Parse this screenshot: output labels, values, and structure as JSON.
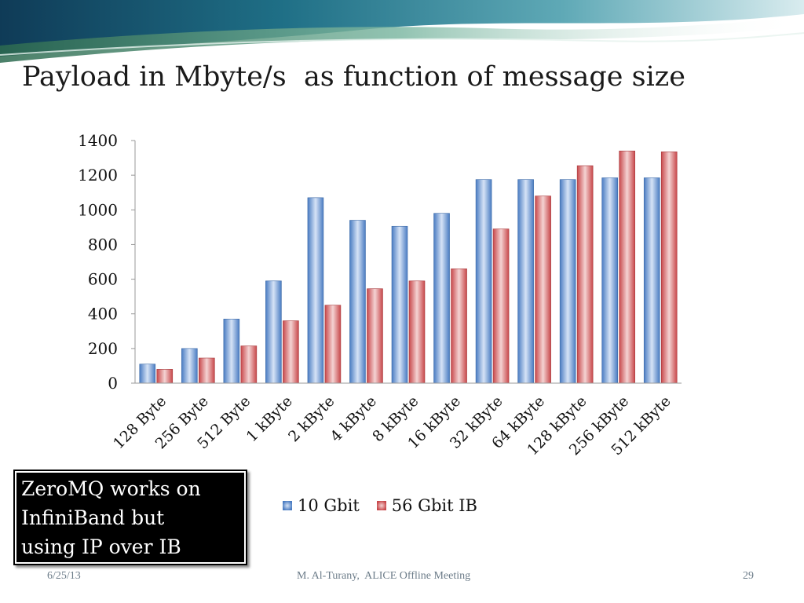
{
  "slide": {
    "title": "Payload in Mbyte/s  as function of message size",
    "note_lines": [
      "ZeroMQ works on",
      "InfiniBand but",
      "using IP over IB"
    ],
    "footer": {
      "date": "6/25/13",
      "center": "M. Al-Turany,  ALICE Offline Meeting",
      "page": "29"
    }
  },
  "chart_data": {
    "type": "bar",
    "title": "Payload in Mbyte/s  as function of message size",
    "xlabel": "",
    "ylabel": "",
    "ylim": [
      0,
      1400
    ],
    "yticks": [
      0,
      200,
      400,
      600,
      800,
      1000,
      1200,
      1400
    ],
    "grid": false,
    "legend_position": "bottom",
    "categories": [
      "128 Byte",
      "256 Byte",
      "512 Byte",
      "1 kByte",
      "2 kByte",
      "4 kByte",
      "8 kByte",
      "16 kByte",
      "32 kByte",
      "64 kByte",
      "128 kByte",
      "256 kByte",
      "512 kByte"
    ],
    "series": [
      {
        "name": "10 Gbit",
        "color": "#4f81bd",
        "values": [
          110,
          200,
          370,
          590,
          1070,
          940,
          905,
          980,
          1175,
          1175,
          1175,
          1185,
          1185
        ]
      },
      {
        "name": "56 Gbit IB",
        "color": "#c0504d",
        "values": [
          80,
          145,
          215,
          360,
          450,
          545,
          590,
          660,
          890,
          1080,
          1255,
          1340,
          1335
        ]
      }
    ]
  }
}
